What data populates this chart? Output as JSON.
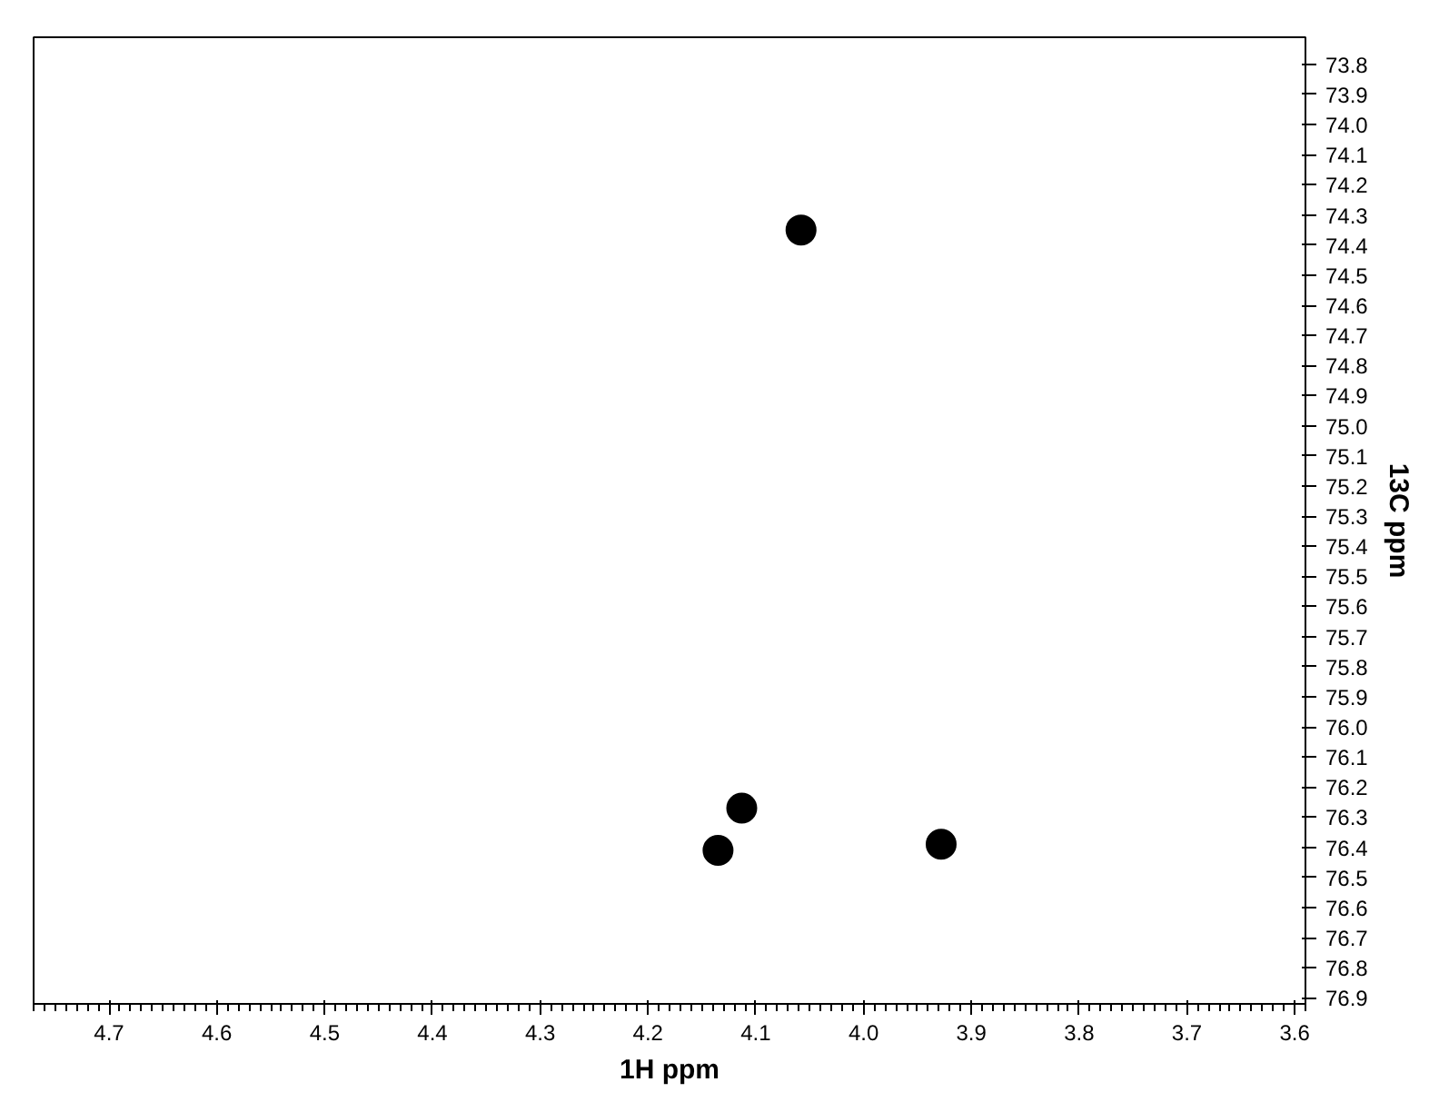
{
  "chart_data": {
    "type": "scatter",
    "xlabel": "1H ppm",
    "ylabel": "13C ppm",
    "x": [
      4.058,
      4.113,
      4.135,
      3.928
    ],
    "series": [
      {
        "color": "#000000",
        "values": [
          74.35,
          76.27,
          76.41,
          76.39
        ]
      }
    ],
    "marker": "circle",
    "grid": false,
    "xlim": [
      4.77,
      3.59
    ],
    "xticks": [
      4.7,
      4.6,
      4.5,
      4.4,
      4.3,
      4.2,
      4.1,
      {
        "value": 4.0,
        "label": "4.0"
      },
      3.9,
      3.8,
      3.7,
      3.6
    ],
    "ylim": [
      76.92,
      73.71
    ],
    "yticks": [
      73.8,
      73.9,
      {
        "value": 74.0,
        "label": "74.0"
      },
      74.1,
      74.2,
      74.3,
      74.4,
      74.5,
      74.6,
      74.7,
      74.8,
      74.9,
      {
        "value": 75.0,
        "label": "75.0"
      },
      75.1,
      75.2,
      75.3,
      75.4,
      75.5,
      75.6,
      75.7,
      75.8,
      75.9,
      {
        "value": 76.0,
        "label": "76.0"
      },
      76.1,
      76.2,
      76.3,
      76.4,
      76.5,
      76.6,
      76.7,
      76.8,
      76.9
    ]
  }
}
